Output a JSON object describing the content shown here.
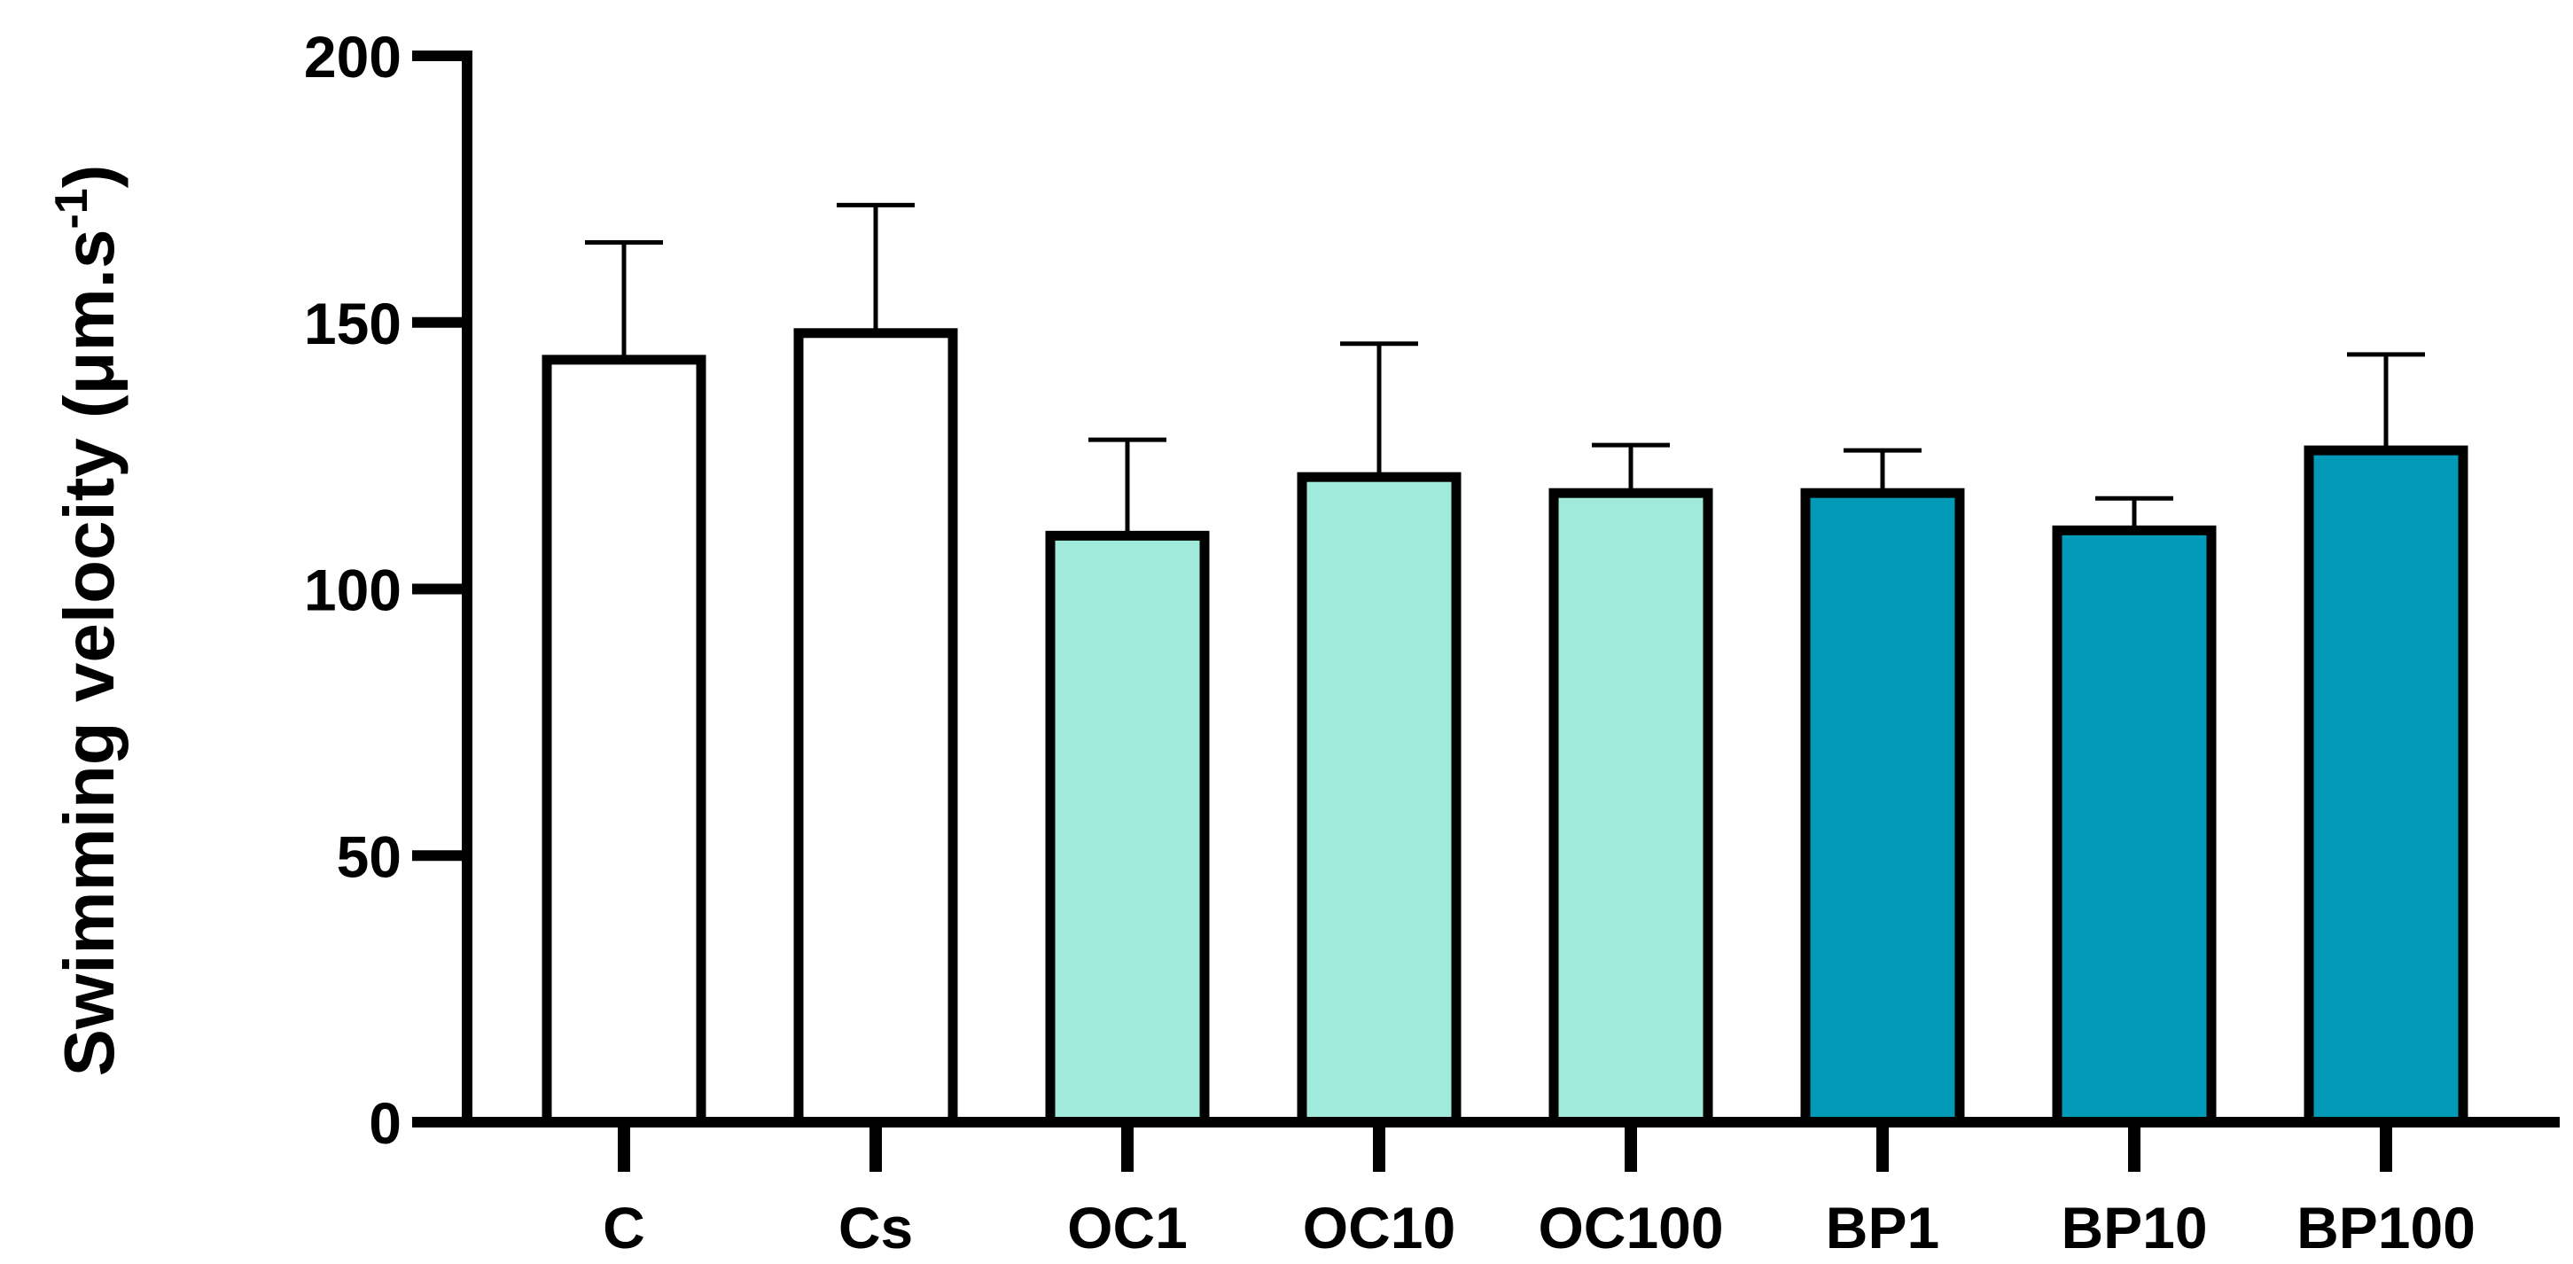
{
  "chart_data": {
    "type": "bar",
    "title": "",
    "xlabel": "",
    "ylabel": "Swimming velocity (μm.s",
    "ylabel_superscript": "-1",
    "ylabel_suffix": ")",
    "ylim": [
      0,
      200
    ],
    "yticks": [
      "0",
      "50",
      "100",
      "150",
      "200"
    ],
    "categories": [
      "C",
      "Cs",
      "OC1",
      "OC10",
      "OC100",
      "BP1",
      "BP10",
      "BP100"
    ],
    "values": [
      143,
      148,
      110,
      121,
      118,
      118,
      111,
      126
    ],
    "errors": [
      22,
      24,
      18,
      25,
      9,
      8,
      6,
      18
    ],
    "colors": [
      "#ffffff",
      "#ffffff",
      "#a0eadb",
      "#a0eadb",
      "#a0eadb",
      "#029ab6",
      "#029ab6",
      "#029ab6"
    ],
    "grid": false
  }
}
